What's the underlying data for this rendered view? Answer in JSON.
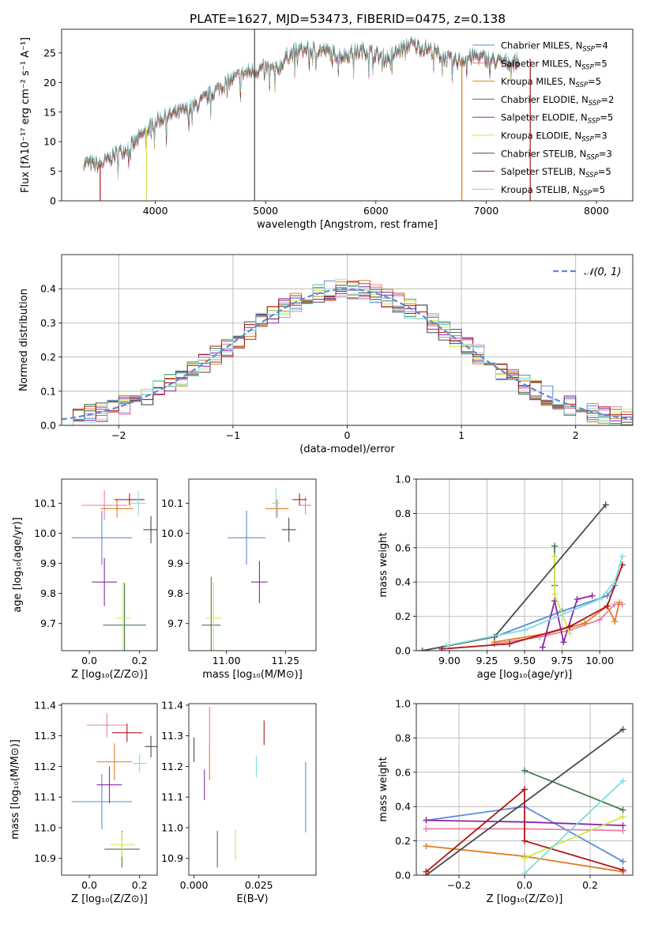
{
  "colors": {
    "Chabrier MILES": "#5b8bd6",
    "Salpeter MILES": "#e87fa6",
    "Kroupa MILES": "#e07c21",
    "Chabrier ELODIE": "#4a7a52",
    "Salpeter ELODIE": "#8a2aa8",
    "Kroupa ELODIE": "#cce84a",
    "Chabrier STELIB": "#4a4a4a",
    "Salpeter STELIB": "#b01616",
    "Kroupa STELIB": "#80dbe0"
  },
  "chart_data": [
    {
      "id": "spectrum",
      "type": "line",
      "title": "PLATE=1627, MJD=53473, FIBERID=0475, z=0.138",
      "xlabel": "wavelength [Angstrom, rest frame]",
      "ylabel": "Flux [fλ10⁻¹⁷ erg cm⁻² s⁻¹ A⁻¹]",
      "xlim": [
        3150,
        8330
      ],
      "ylim": [
        0,
        29
      ],
      "xticks": [
        4000,
        5000,
        6000,
        7000,
        8000
      ],
      "yticks": [
        0,
        5,
        10,
        15,
        20,
        25
      ],
      "legend_position": "upper-right",
      "x": [
        3350,
        3500,
        3650,
        3800,
        3950,
        4000,
        4150,
        4300,
        4400,
        4500,
        4650,
        4800,
        5000,
        5100,
        5200,
        5300,
        5500,
        5700,
        5900,
        6100,
        6300,
        6500,
        6700,
        6900,
        7100,
        7300
      ],
      "y": [
        6.5,
        6.0,
        8.0,
        9.5,
        12.5,
        13.5,
        14.5,
        15.5,
        16.5,
        18.0,
        20.0,
        21.5,
        22.5,
        22.0,
        24.5,
        25.5,
        25.5,
        24.5,
        25.5,
        24.0,
        26.5,
        25.5,
        23.5,
        24.5,
        23.5,
        23.5
      ],
      "spikes": [
        [
          3500,
          0,
          6
        ],
        [
          3920,
          0,
          12
        ],
        [
          4900,
          0,
          29
        ],
        [
          6780,
          0,
          24
        ],
        [
          7400,
          0,
          24
        ]
      ],
      "series": [
        {
          "name": "Chabrier MILES, N$_{SSP}$=4",
          "label_main": "Chabrier MILES, N",
          "label_sub": "SSP",
          "label_end": "=4"
        },
        {
          "name": "Salpeter MILES, N$_{SSP}$=5",
          "label_main": "Salpeter MILES, N",
          "label_sub": "SSP",
          "label_end": "=5"
        },
        {
          "name": "Kroupa MILES, N$_{SSP}$=5",
          "label_main": "Kroupa MILES, N",
          "label_sub": "SSP",
          "label_end": "=5"
        },
        {
          "name": "Chabrier ELODIE, N$_{SSP}$=2",
          "label_main": "Chabrier ELODIE, N",
          "label_sub": "SSP",
          "label_end": "=2"
        },
        {
          "name": "Salpeter ELODIE, N$_{SSP}$=5",
          "label_main": "Salpeter ELODIE, N",
          "label_sub": "SSP",
          "label_end": "=5"
        },
        {
          "name": "Kroupa ELODIE, N$_{SSP}$=3",
          "label_main": "Kroupa ELODIE, N",
          "label_sub": "SSP",
          "label_end": "=3"
        },
        {
          "name": "Chabrier STELIB, N$_{SSP}$=3",
          "label_main": "Chabrier STELIB, N",
          "label_sub": "SSP",
          "label_end": "=3"
        },
        {
          "name": "Salpeter STELIB, N$_{SSP}$=5",
          "label_main": "Salpeter STELIB, N",
          "label_sub": "SSP",
          "label_end": "=5"
        },
        {
          "name": "Kroupa STELIB, N$_{SSP}$=5",
          "label_main": "Kroupa STELIB, N",
          "label_sub": "SSP",
          "label_end": "=5"
        }
      ]
    },
    {
      "id": "residuals",
      "type": "histogram",
      "xlabel": "(data-model)/error",
      "ylabel": "Normed distribution",
      "xlim": [
        -2.5,
        2.5
      ],
      "ylim": [
        0,
        0.5
      ],
      "xticks": [
        -2,
        -1,
        0,
        1,
        2
      ],
      "xticklabels": [
        "−2",
        "−1",
        "0",
        "1",
        "2"
      ],
      "yticks": [
        0.0,
        0.1,
        0.2,
        0.3,
        0.4
      ],
      "grid": true,
      "legend_position": "upper-right",
      "legend_label": "𝒩(0, 1)",
      "normal_curve": {
        "mean": 0,
        "sigma": 1,
        "style": "dashed"
      },
      "bin_width": 0.1
    },
    {
      "id": "age-vs-Z",
      "type": "errorbar",
      "xlabel": "Z [log₁₀(Z/Z⊙)]",
      "ylabel": "age  [log₁₀(age/yr)]",
      "xlim": [
        -0.11,
        0.27
      ],
      "ylim": [
        9.61,
        10.18
      ],
      "xticks": [
        0.0,
        0.2
      ],
      "yticks": [
        9.7,
        9.8,
        9.9,
        10.0,
        10.1
      ],
      "points": [
        {
          "series": "Chabrier MILES",
          "x": 0.05,
          "y": 9.985,
          "xerr": 0.12,
          "yerr": 0.09
        },
        {
          "series": "Salpeter MILES",
          "x": 0.06,
          "y": 10.093,
          "xerr": 0.09,
          "yerr": 0.05
        },
        {
          "series": "Kroupa MILES",
          "x": 0.11,
          "y": 10.082,
          "xerr": 0.065,
          "yerr": 0.03
        },
        {
          "series": "Chabrier ELODIE",
          "x": 0.14,
          "y": 9.695,
          "xerr": 0.085,
          "yerr": 0.14
        },
        {
          "series": "Salpeter ELODIE",
          "x": 0.06,
          "y": 9.838,
          "xerr": 0.05,
          "yerr": 0.08
        },
        {
          "series": "Kroupa ELODIE",
          "x": 0.135,
          "y": 9.718,
          "xerr": 0.03,
          "yerr": 0.12
        },
        {
          "series": "Chabrier STELIB",
          "x": 0.245,
          "y": 10.012,
          "xerr": 0.03,
          "yerr": 0.045
        },
        {
          "series": "Salpeter STELIB",
          "x": 0.16,
          "y": 10.112,
          "xerr": 0.06,
          "yerr": 0.02
        },
        {
          "series": "Kroupa STELIB",
          "x": 0.195,
          "y": 10.1,
          "xerr": 0.03,
          "yerr": 0.04
        }
      ]
    },
    {
      "id": "age-vs-mass",
      "type": "errorbar",
      "xlabel": "mass [log₁₀(M/M⊙)]",
      "ylabel": "",
      "xlim": [
        10.84,
        11.38
      ],
      "ylim": [
        9.61,
        10.18
      ],
      "xticks": [
        11.0,
        11.25
      ],
      "xticklabels": [
        "11.00",
        "11.25"
      ],
      "yticks": [
        9.7,
        9.8,
        9.9,
        10.0,
        10.1
      ],
      "points": [
        {
          "series": "Chabrier MILES",
          "x": 11.085,
          "y": 9.985,
          "xerr": 0.08,
          "yerr": 0.09
        },
        {
          "series": "Salpeter MILES",
          "x": 11.335,
          "y": 10.093,
          "xerr": 0.025,
          "yerr": 0.03
        },
        {
          "series": "Kroupa MILES",
          "x": 11.215,
          "y": 10.082,
          "xerr": 0.05,
          "yerr": 0.03
        },
        {
          "series": "Chabrier ELODIE",
          "x": 10.935,
          "y": 9.695,
          "xerr": 0.04,
          "yerr": 0.16
        },
        {
          "series": "Salpeter ELODIE",
          "x": 11.14,
          "y": 9.838,
          "xerr": 0.035,
          "yerr": 0.07
        },
        {
          "series": "Kroupa ELODIE",
          "x": 10.945,
          "y": 9.718,
          "xerr": 0.035,
          "yerr": 0.12
        },
        {
          "series": "Chabrier STELIB",
          "x": 11.265,
          "y": 10.012,
          "xerr": 0.03,
          "yerr": 0.04
        },
        {
          "series": "Salpeter STELIB",
          "x": 11.31,
          "y": 10.112,
          "xerr": 0.03,
          "yerr": 0.02
        },
        {
          "series": "Kroupa STELIB",
          "x": 11.21,
          "y": 10.1,
          "xerr": 0.015,
          "yerr": 0.05
        }
      ]
    },
    {
      "id": "weight-vs-age",
      "type": "line",
      "xlabel": "age  [log₁₀(age/yr)]",
      "ylabel": "mass weight",
      "xlim": [
        8.78,
        10.22
      ],
      "ylim": [
        0,
        1.0
      ],
      "xticks": [
        9.0,
        9.25,
        9.5,
        9.75,
        10.0
      ],
      "xticklabels": [
        "9.00",
        "9.25",
        "9.50",
        "9.75",
        "10.00"
      ],
      "yticks": [
        0.0,
        0.2,
        0.4,
        0.6,
        0.8,
        1.0
      ],
      "grid": true,
      "series": [
        {
          "name": "Chabrier MILES",
          "x": [
            9.3,
            9.75,
            10.05,
            10.1
          ],
          "y": [
            0.08,
            0.23,
            0.32,
            0.38
          ]
        },
        {
          "name": "Salpeter MILES",
          "x": [
            9.3,
            9.6,
            9.8,
            10.0,
            10.1,
            10.15
          ],
          "y": [
            0.04,
            0.08,
            0.12,
            0.18,
            0.27,
            0.27
          ]
        },
        {
          "name": "Kroupa MILES",
          "x": [
            9.3,
            9.65,
            9.9,
            10.05,
            10.1,
            10.13
          ],
          "y": [
            0.05,
            0.1,
            0.16,
            0.26,
            0.17,
            0.28
          ]
        },
        {
          "name": "Chabrier ELODIE",
          "x": [
            9.7,
            9.7
          ],
          "y": [
            0.38,
            0.61
          ]
        },
        {
          "name": "Salpeter ELODIE",
          "x": [
            9.62,
            9.7,
            9.76,
            9.85,
            9.95
          ],
          "y": [
            0.02,
            0.29,
            0.05,
            0.3,
            0.32
          ]
        },
        {
          "name": "Kroupa ELODIE",
          "x": [
            9.7,
            9.7,
            9.8
          ],
          "y": [
            0.55,
            0.33,
            0.1
          ]
        },
        {
          "name": "Chabrier STELIB",
          "x": [
            8.82,
            9.3,
            10.04
          ],
          "y": [
            0.0,
            0.08,
            0.85
          ]
        },
        {
          "name": "Salpeter STELIB",
          "x": [
            8.95,
            9.4,
            9.8,
            10.05,
            10.15
          ],
          "y": [
            0.01,
            0.04,
            0.14,
            0.26,
            0.5
          ]
        },
        {
          "name": "Kroupa STELIB",
          "x": [
            8.98,
            9.5,
            10.0,
            10.1,
            10.15
          ],
          "y": [
            0.03,
            0.12,
            0.3,
            0.4,
            0.55
          ]
        }
      ]
    },
    {
      "id": "mass-vs-Z",
      "type": "errorbar",
      "xlabel": "Z [log₁₀(Z/Z⊙)]",
      "ylabel": "mass [log₁₀(M/M⊙)]",
      "xlim": [
        -0.11,
        0.27
      ],
      "ylim": [
        10.845,
        11.405
      ],
      "xticks": [
        0.0,
        0.2
      ],
      "yticks": [
        10.9,
        11.0,
        11.1,
        11.2,
        11.3,
        11.4
      ],
      "points": [
        {
          "series": "Chabrier MILES",
          "x": 0.05,
          "y": 11.085,
          "xerr": 0.12,
          "yerr": 0.09
        },
        {
          "series": "Salpeter MILES",
          "x": 0.07,
          "y": 11.335,
          "xerr": 0.08,
          "yerr": 0.04
        },
        {
          "series": "Kroupa MILES",
          "x": 0.1,
          "y": 11.215,
          "xerr": 0.07,
          "yerr": 0.06
        },
        {
          "series": "Chabrier ELODIE",
          "x": 0.13,
          "y": 10.93,
          "xerr": 0.07,
          "yerr": 0.06
        },
        {
          "series": "Salpeter ELODIE",
          "x": 0.08,
          "y": 11.14,
          "xerr": 0.05,
          "yerr": 0.06
        },
        {
          "series": "Kroupa ELODIE",
          "x": 0.13,
          "y": 10.945,
          "xerr": 0.05,
          "yerr": 0.04
        },
        {
          "series": "Chabrier STELIB",
          "x": 0.245,
          "y": 11.265,
          "xerr": 0.025,
          "yerr": 0.035
        },
        {
          "series": "Salpeter STELIB",
          "x": 0.15,
          "y": 11.31,
          "xerr": 0.06,
          "yerr": 0.03
        },
        {
          "series": "Kroupa STELIB",
          "x": 0.2,
          "y": 11.21,
          "xerr": 0.025,
          "yerr": 0.03
        }
      ]
    },
    {
      "id": "mass-vs-ebv",
      "type": "errorbar",
      "xlabel": "E(B-V)",
      "ylabel": "",
      "xlim": [
        -0.002,
        0.047
      ],
      "ylim": [
        10.845,
        11.405
      ],
      "xticks": [
        0.0,
        0.025
      ],
      "xticklabels": [
        "0.000",
        "0.025"
      ],
      "yticks": [
        10.9,
        11.0,
        11.1,
        11.2,
        11.3,
        11.4
      ],
      "points": [
        {
          "series": "Chabrier MILES",
          "x": 0.043,
          "y": 11.1,
          "xerr": 0,
          "yerr": 0.115
        },
        {
          "series": "Salpeter MILES",
          "x": 0.006,
          "y": 11.335,
          "xerr": 0,
          "yerr": 0.06
        },
        {
          "series": "Kroupa MILES",
          "x": 0.006,
          "y": 11.215,
          "xerr": 0,
          "yerr": 0.06
        },
        {
          "series": "Chabrier ELODIE",
          "x": 0.009,
          "y": 10.93,
          "xerr": 0,
          "yerr": 0.06
        },
        {
          "series": "Salpeter ELODIE",
          "x": 0.004,
          "y": 11.14,
          "xerr": 0,
          "yerr": 0.05
        },
        {
          "series": "Kroupa ELODIE",
          "x": 0.016,
          "y": 10.945,
          "xerr": 0,
          "yerr": 0.05
        },
        {
          "series": "Chabrier STELIB",
          "x": 0.0,
          "y": 11.255,
          "xerr": 0,
          "yerr": 0.04
        },
        {
          "series": "Salpeter STELIB",
          "x": 0.027,
          "y": 11.31,
          "xerr": 0,
          "yerr": 0.04
        },
        {
          "series": "Kroupa STELIB",
          "x": 0.024,
          "y": 11.2,
          "xerr": 0,
          "yerr": 0.035
        }
      ]
    },
    {
      "id": "weight-vs-Z",
      "type": "line",
      "xlabel": "Z [log₁₀(Z/Z⊙)]",
      "ylabel": "mass weight",
      "xlim": [
        -0.33,
        0.33
      ],
      "ylim": [
        0,
        1.0
      ],
      "xticks": [
        -0.2,
        0.0,
        0.2
      ],
      "xticklabels": [
        "−0.2",
        "0.0",
        "0.2"
      ],
      "yticks": [
        0.0,
        0.2,
        0.4,
        0.6,
        0.8,
        1.0
      ],
      "grid": true,
      "series": [
        {
          "name": "Chabrier MILES",
          "x": [
            -0.3,
            0.0,
            0.3
          ],
          "y": [
            0.32,
            0.4,
            0.08
          ]
        },
        {
          "name": "Salpeter MILES",
          "x": [
            -0.3,
            0.0,
            0.3
          ],
          "y": [
            0.27,
            0.27,
            0.26
          ]
        },
        {
          "name": "Kroupa MILES",
          "x": [
            -0.3,
            0.0,
            0.3
          ],
          "y": [
            0.17,
            0.11,
            0.02
          ]
        },
        {
          "name": "Chabrier ELODIE",
          "x": [
            0.0,
            0.3
          ],
          "y": [
            0.61,
            0.38
          ]
        },
        {
          "name": "Salpeter ELODIE",
          "x": [
            -0.3,
            0.0,
            0.3
          ],
          "y": [
            0.32,
            0.31,
            0.29
          ]
        },
        {
          "name": "Kroupa ELODIE",
          "x": [
            0.0,
            0.3
          ],
          "y": [
            0.1,
            0.34
          ]
        },
        {
          "name": "Chabrier STELIB",
          "x": [
            -0.3,
            0.3
          ],
          "y": [
            0.0,
            0.85
          ]
        },
        {
          "name": "Salpeter STELIB",
          "x": [
            -0.3,
            0.0,
            0.0,
            0.3
          ],
          "y": [
            0.02,
            0.5,
            0.2,
            0.03
          ]
        },
        {
          "name": "Kroupa STELIB",
          "x": [
            0.0,
            0.3
          ],
          "y": [
            0.01,
            0.55
          ]
        }
      ]
    }
  ]
}
